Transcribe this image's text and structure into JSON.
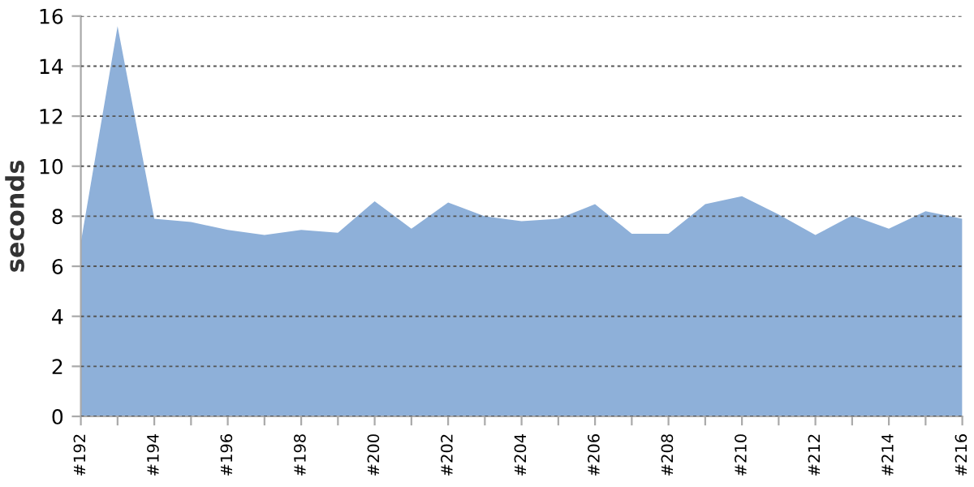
{
  "chart_data": {
    "type": "area",
    "ylabel": "seconds",
    "categories": [
      "#192",
      null,
      "#194",
      null,
      "#196",
      null,
      "#198",
      null,
      "#200",
      null,
      "#202",
      null,
      "#204",
      null,
      "#206",
      null,
      "#208",
      null,
      "#210",
      null,
      "#212",
      null,
      "#214",
      null,
      "#216"
    ],
    "series": [
      {
        "color": "#8eb0d9",
        "values": [
          6.95,
          15.6,
          7.9,
          7.77,
          7.45,
          7.25,
          7.45,
          7.34,
          8.6,
          7.5,
          8.55,
          8.0,
          7.8,
          7.9,
          8.48,
          7.3,
          7.3,
          8.48,
          8.8,
          8.07,
          7.25,
          8.03,
          7.5,
          8.2,
          7.9
        ]
      }
    ],
    "ylim": [
      0,
      16
    ],
    "yticks": [
      0,
      2,
      4,
      6,
      8,
      10,
      12,
      14,
      16
    ],
    "grid": "y"
  }
}
